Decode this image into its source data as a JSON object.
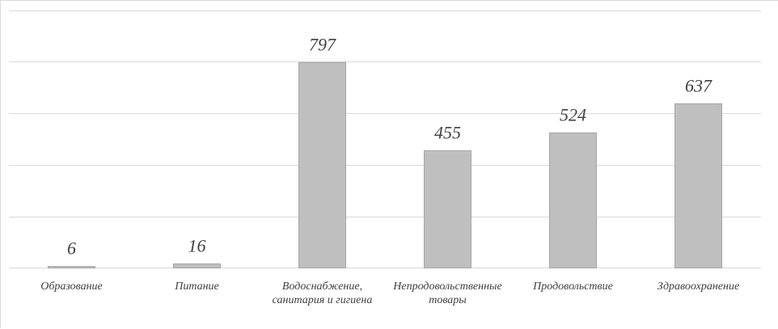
{
  "colors": {
    "bar_fill": "#bfbfbf",
    "bar_stroke": "#a6a6a6",
    "grid": "#d9d9d9",
    "text": "#404040"
  },
  "chart_data": {
    "type": "bar",
    "title": "",
    "xlabel": "",
    "ylabel": "",
    "ylim": [
      0,
      1000
    ],
    "grid": true,
    "legend": "none",
    "categories": [
      "Образование",
      "Питание",
      "Водоснабжение, санитария и гигиена",
      "Непродовольственные товары",
      "Продовольствие",
      "Здравоохранение"
    ],
    "category_lines": [
      [
        "Образование"
      ],
      [
        "Питание"
      ],
      [
        "Водоснабжение,",
        "санитария и гигиена"
      ],
      [
        "Непродовольственные",
        "товары"
      ],
      [
        "Продовольствие"
      ],
      [
        "Здравоохранение"
      ]
    ],
    "values": [
      6,
      16,
      797,
      455,
      524,
      637
    ]
  }
}
